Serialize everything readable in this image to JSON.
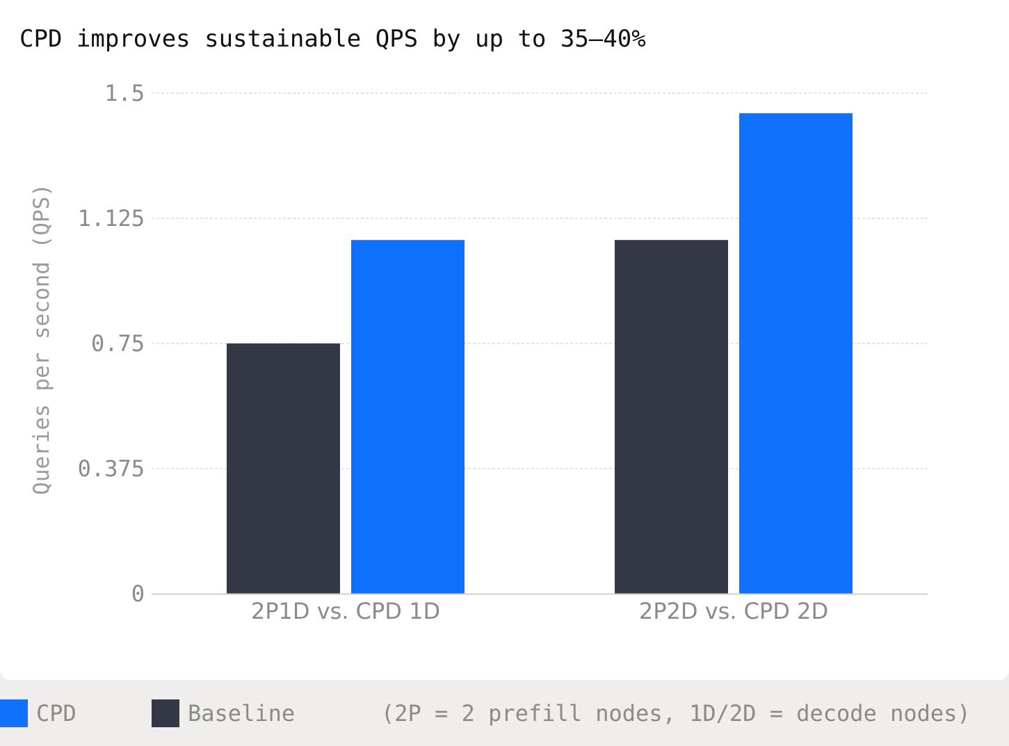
{
  "chart_data": {
    "type": "bar",
    "title": "CPD improves sustainable QPS by up to 35–40%",
    "ylabel": "Queries per second (QPS)",
    "xlabel": "",
    "categories": [
      "2P1D vs. CPD 1D",
      "2P2D vs. CPD 2D"
    ],
    "series": [
      {
        "name": "Baseline",
        "color": "#333844",
        "values": [
          0.75,
          1.06
        ]
      },
      {
        "name": "CPD",
        "color": "#1070ff",
        "values": [
          1.06,
          1.44
        ]
      }
    ],
    "ylim": [
      0,
      1.5
    ],
    "yticks": [
      "0",
      "0.375",
      "0.75",
      "1.125",
      "1.5"
    ],
    "grid": true,
    "legend_position": "bottom-left"
  },
  "legend": {
    "items": [
      {
        "label": "CPD",
        "color": "#1070ff"
      },
      {
        "label": "Baseline",
        "color": "#333844"
      }
    ],
    "note": "(2P = 2 prefill nodes, 1D/2D = decode nodes)"
  }
}
